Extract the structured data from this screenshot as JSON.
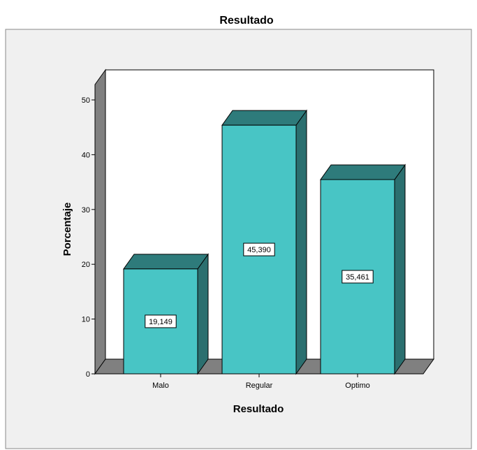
{
  "chart_data": {
    "type": "bar",
    "title": "Resultado",
    "xlabel": "Resultado",
    "ylabel": "Porcentaje",
    "categories": [
      "Malo",
      "Regular",
      "Optimo"
    ],
    "values": [
      19.149,
      45.39,
      35.461
    ],
    "data_labels": [
      "19,149",
      "45,390",
      "35,461"
    ],
    "ylim": [
      0,
      50
    ],
    "yticks": [
      0,
      10,
      20,
      30,
      40,
      50
    ],
    "ytick_labels": [
      "0",
      "10",
      "20",
      "30",
      "40",
      "50"
    ],
    "style": "3d",
    "colors": {
      "bar_front": "#48C5C5",
      "bar_top": "#2E7B7B",
      "bar_side": "#2B6F6F",
      "bar_edge": "#000000",
      "outer_background": "#F0F0F0",
      "plot_background": "#FFFFFF",
      "wall_side": "#808080",
      "floor": "#808080"
    },
    "grid": false,
    "legend": "none"
  }
}
